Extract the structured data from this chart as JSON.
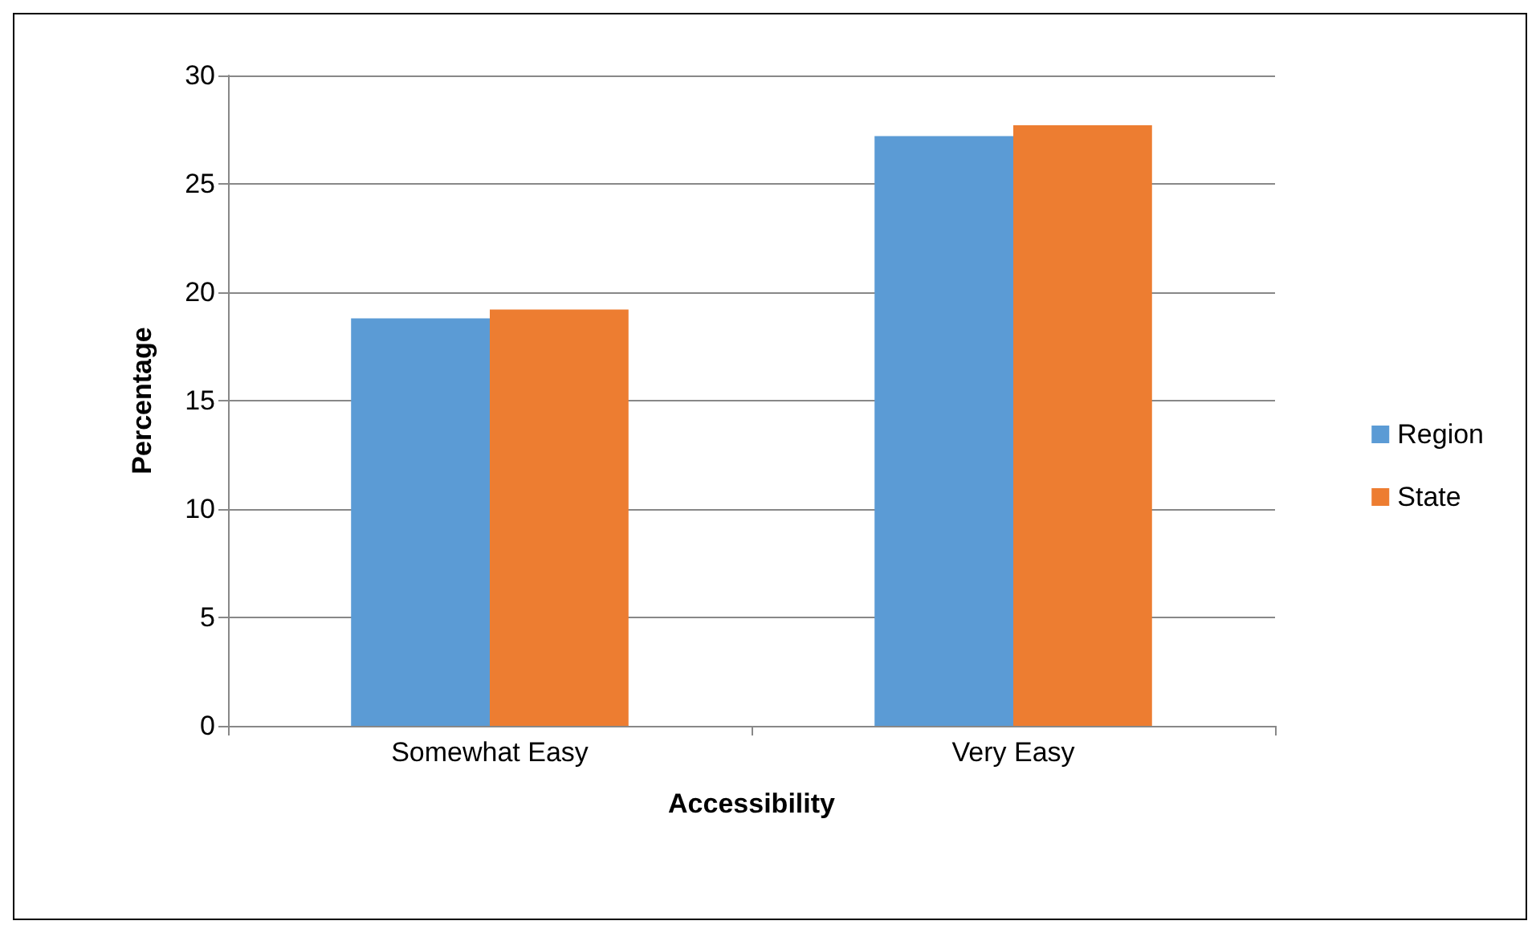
{
  "chart_data": {
    "type": "bar",
    "xlabel": "Accessibility",
    "ylabel": "Percentage",
    "categories": [
      "Somewhat Easy",
      "Very Easy"
    ],
    "series": [
      {
        "name": "Region",
        "color": "#5b9bd5",
        "values": [
          18.8,
          27.2
        ]
      },
      {
        "name": "State",
        "color": "#ed7d31",
        "values": [
          19.2,
          27.7
        ]
      }
    ],
    "ylim": [
      0,
      30
    ],
    "yticks": [
      0,
      5,
      10,
      15,
      20,
      25,
      30
    ],
    "grid": "y",
    "legend": "right"
  }
}
